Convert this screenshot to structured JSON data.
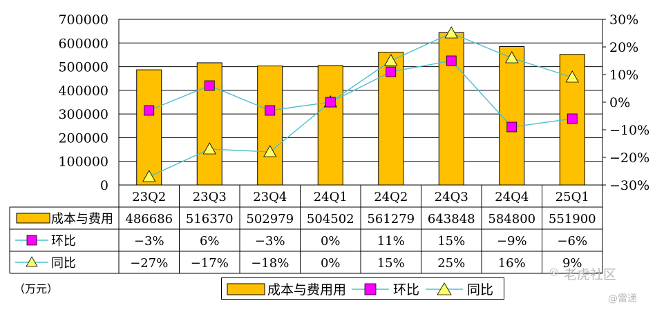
{
  "chart_data": {
    "type": "bar",
    "categories": [
      "23Q2",
      "23Q3",
      "23Q4",
      "24Q1",
      "24Q2",
      "24Q3",
      "24Q4",
      "25Q1"
    ],
    "series": [
      {
        "name": "成本与费用",
        "type": "bar",
        "axis": "left",
        "values": [
          486686,
          516370,
          502979,
          504502,
          561279,
          643848,
          584800,
          551900
        ],
        "table_label": "成本与费用",
        "table_values": [
          "486686",
          "516370",
          "502979",
          "504502",
          "561279",
          "643848",
          "584800",
          "551900"
        ]
      },
      {
        "name": "环比",
        "type": "line",
        "marker": "square",
        "axis": "right",
        "values": [
          -3,
          6,
          -3,
          0,
          11,
          15,
          -9,
          -6
        ],
        "table_label": "环比",
        "table_values": [
          "−3%",
          "6%",
          "−3%",
          "0%",
          "11%",
          "15%",
          "−9%",
          "−6%"
        ]
      },
      {
        "name": "同比",
        "type": "line",
        "marker": "triangle",
        "axis": "right",
        "values": [
          -27,
          -17,
          -18,
          0,
          15,
          25,
          16,
          9
        ],
        "table_label": "同比",
        "table_values": [
          "−27%",
          "−17%",
          "−18%",
          "0%",
          "15%",
          "25%",
          "16%",
          "9%"
        ]
      }
    ],
    "y_left": {
      "min": 0,
      "max": 700000,
      "step": 100000,
      "ticks": [
        "0",
        "100000",
        "200000",
        "300000",
        "400000",
        "500000",
        "600000",
        "700000"
      ]
    },
    "y_right": {
      "min": -30,
      "max": 30,
      "step": 10,
      "ticks": [
        "−30%",
        "−20%",
        "−10%",
        "0%",
        "10%",
        "20%",
        "30%"
      ]
    },
    "unit_label": "（万元）",
    "legend": [
      "成本与费用用",
      "环比",
      "同比"
    ],
    "colors": {
      "bar": "#ffc000",
      "bar_edge": "#000000",
      "line": "#4bbfcf",
      "square_marker": "#ff00ff",
      "triangle_marker": "#ffff66"
    }
  },
  "watermark": {
    "brand": "老虎社区",
    "author": "@雷递"
  }
}
